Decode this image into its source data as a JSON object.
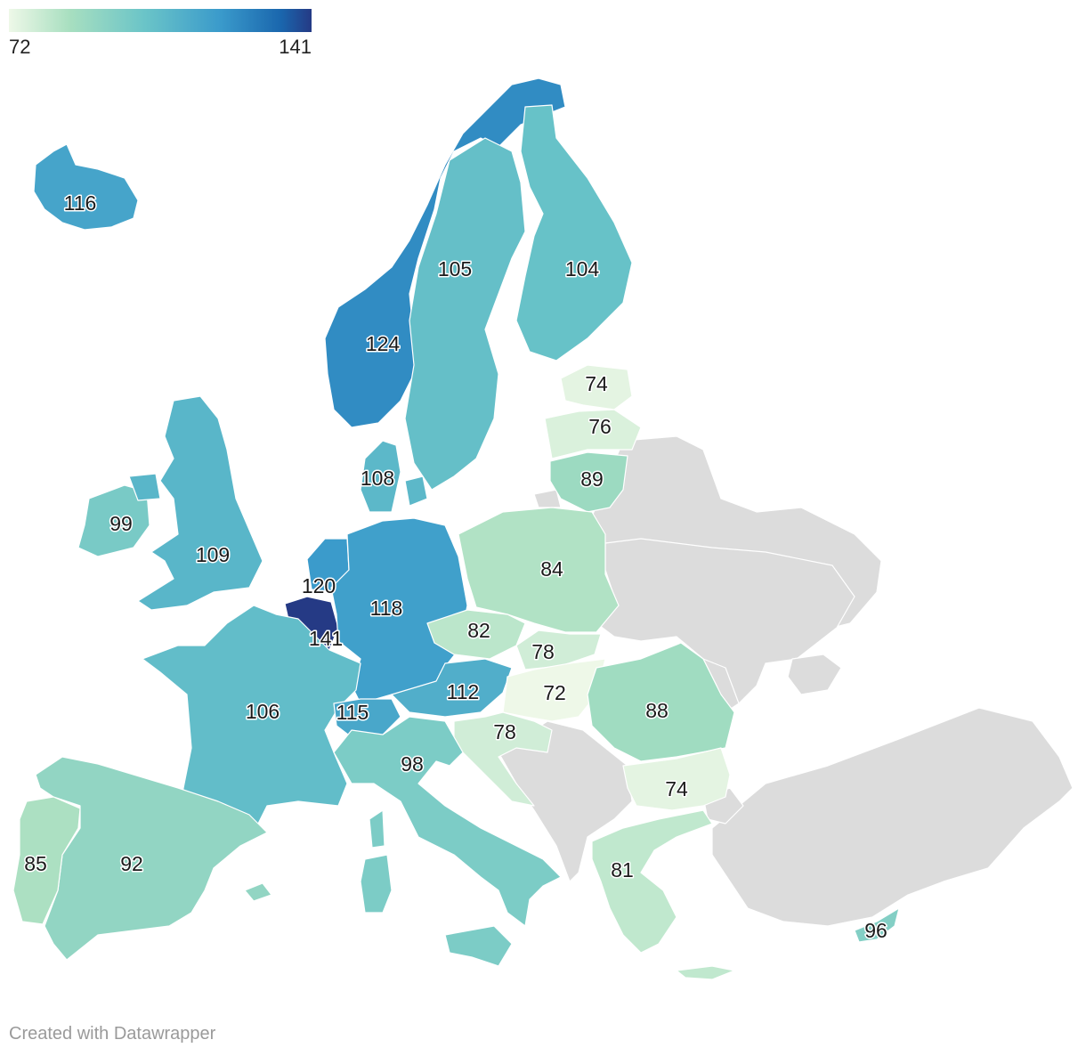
{
  "legend": {
    "min": 72,
    "max": 141,
    "min_label": "72",
    "max_label": "141",
    "scale_colors": [
      "#eef8e8",
      "#a8dfc0",
      "#6ac4c8",
      "#3a9acb",
      "#1a66ad",
      "#253a85"
    ]
  },
  "no_data_color": "#dcdcdc",
  "footer": {
    "credit": "Created with Datawrapper"
  },
  "chart_data": {
    "type": "choropleth",
    "regions": [
      {
        "id": "iceland",
        "value": 116,
        "label": "116"
      },
      {
        "id": "norway",
        "value": 124,
        "label": "124"
      },
      {
        "id": "sweden",
        "value": 105,
        "label": "105"
      },
      {
        "id": "finland",
        "value": 104,
        "label": "104"
      },
      {
        "id": "estonia",
        "value": 74,
        "label": "74"
      },
      {
        "id": "latvia",
        "value": 76,
        "label": "76"
      },
      {
        "id": "lithuania",
        "value": 89,
        "label": "89"
      },
      {
        "id": "denmark",
        "value": 108,
        "label": "108"
      },
      {
        "id": "ireland",
        "value": 99,
        "label": "99"
      },
      {
        "id": "united-kingdom",
        "value": 109,
        "label": "109"
      },
      {
        "id": "netherlands",
        "value": 120,
        "label": "120"
      },
      {
        "id": "belgium",
        "value": 141,
        "label": "141"
      },
      {
        "id": "germany",
        "value": 118,
        "label": "118"
      },
      {
        "id": "poland",
        "value": 84,
        "label": "84"
      },
      {
        "id": "czechia",
        "value": 82,
        "label": "82"
      },
      {
        "id": "slovakia",
        "value": 78,
        "label": "78"
      },
      {
        "id": "austria",
        "value": 112,
        "label": "112"
      },
      {
        "id": "hungary",
        "value": 72,
        "label": "72"
      },
      {
        "id": "romania",
        "value": 88,
        "label": "88"
      },
      {
        "id": "france",
        "value": 106,
        "label": "106"
      },
      {
        "id": "switzerland",
        "value": 115,
        "label": "115"
      },
      {
        "id": "slovenia-croatia",
        "value": 78,
        "label": "78"
      },
      {
        "id": "italy",
        "value": 98,
        "label": "98"
      },
      {
        "id": "bulgaria",
        "value": 74,
        "label": "74"
      },
      {
        "id": "spain",
        "value": 92,
        "label": "92"
      },
      {
        "id": "portugal",
        "value": 85,
        "label": "85"
      },
      {
        "id": "greece",
        "value": 81,
        "label": "81"
      },
      {
        "id": "cyprus",
        "value": 96,
        "label": "96"
      }
    ],
    "no_data_regions": [
      "ukraine",
      "belarus",
      "russia",
      "moldova",
      "serbia",
      "bosnia",
      "montenegro",
      "albania",
      "north-macedonia",
      "kosovo",
      "turkey"
    ]
  }
}
